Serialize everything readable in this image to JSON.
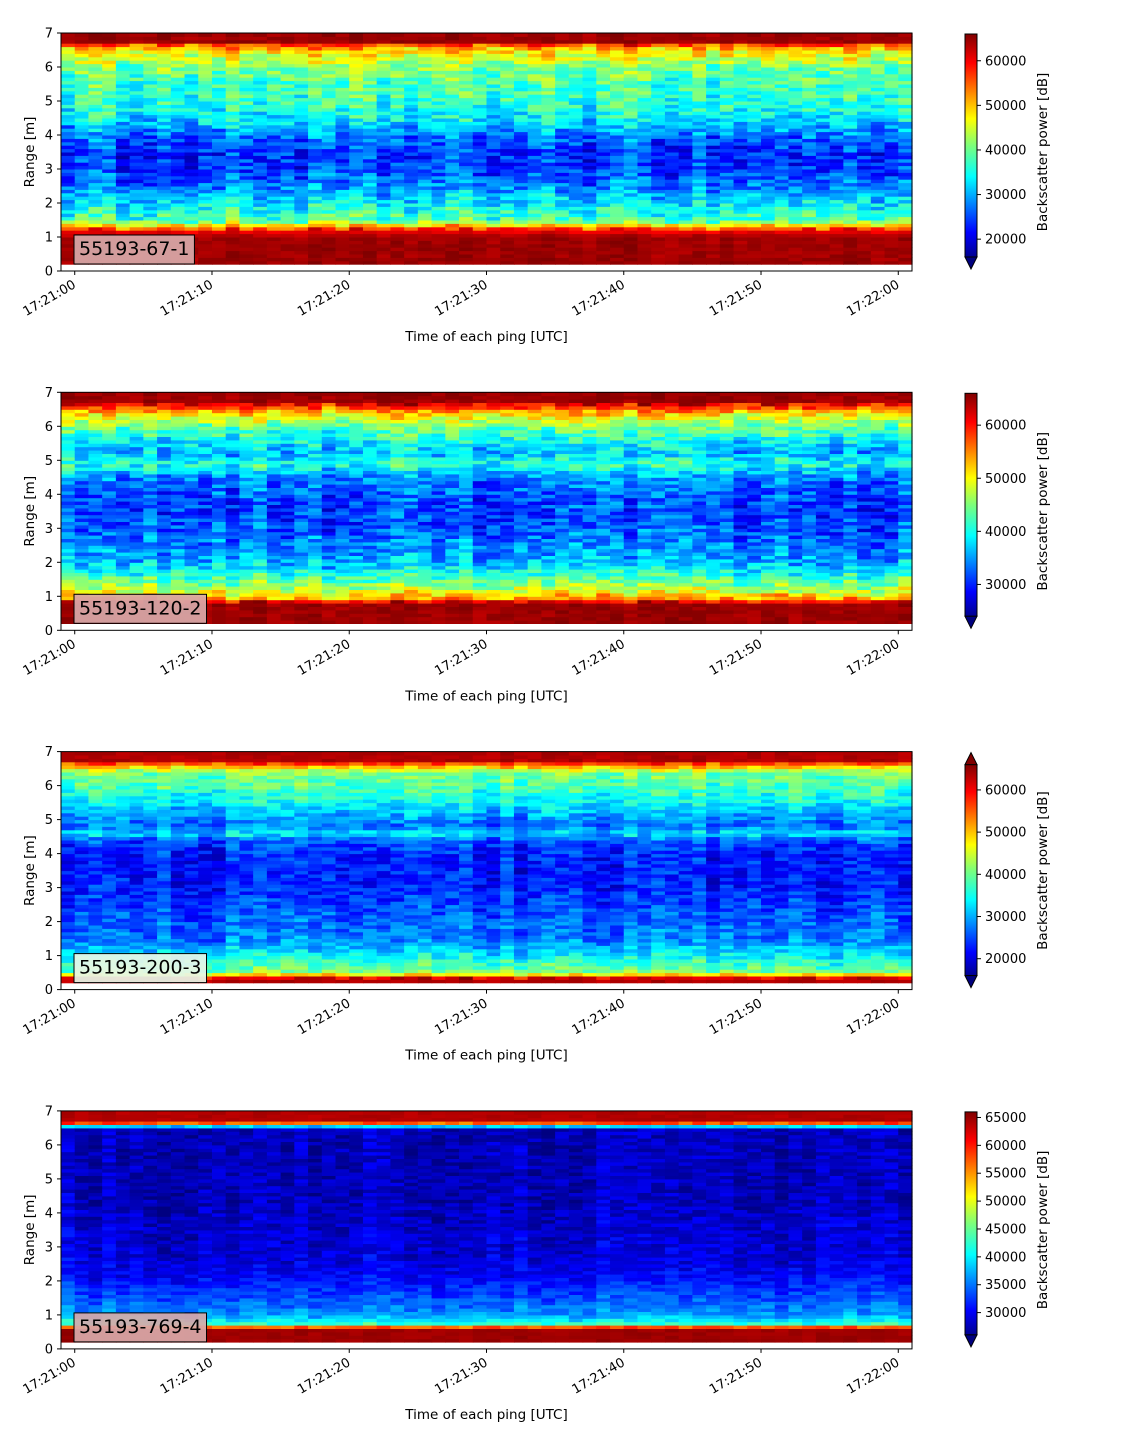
{
  "chart_data": [
    {
      "type": "heatmap",
      "label_box": "55193-67-1",
      "label_box_color": "#d8a9a9",
      "xlabel": "Time of each ping [UTC]",
      "ylabel": "Range [m]",
      "colorbar_label": "Backscatter power [dB]",
      "xticks": [
        "17:21:00",
        "17:21:10",
        "17:21:20",
        "17:21:30",
        "17:21:40",
        "17:21:50",
        "17:22:00"
      ],
      "xlim_seconds_after_17_21_00": [
        -1,
        61
      ],
      "ylim": [
        0,
        7
      ],
      "yticks": [
        0,
        1,
        2,
        3,
        4,
        5,
        6,
        7
      ],
      "colorbar_ticks": [
        20000,
        30000,
        40000,
        50000,
        60000
      ],
      "colorbar_range": [
        16000,
        66000
      ],
      "colorbar_extend": "min",
      "colormap": "jet",
      "profile": {
        "range_m": [
          0.2,
          1.0,
          1.2,
          1.5,
          2.0,
          2.5,
          3.0,
          3.5,
          4.0,
          4.5,
          5.0,
          5.5,
          6.0,
          6.4,
          6.6,
          6.75,
          7.0
        ],
        "level": [
          0.97,
          0.97,
          0.88,
          0.45,
          0.36,
          0.25,
          0.18,
          0.17,
          0.24,
          0.36,
          0.42,
          0.45,
          0.5,
          0.62,
          0.72,
          0.97,
          0.97
        ]
      },
      "noise": 0.09
    },
    {
      "type": "heatmap",
      "label_box": "55193-120-2",
      "label_box_color": "#d8a9a9",
      "xlabel": "Time of each ping [UTC]",
      "ylabel": "Range [m]",
      "colorbar_label": "Backscatter power [dB]",
      "xticks": [
        "17:21:00",
        "17:21:10",
        "17:21:20",
        "17:21:30",
        "17:21:40",
        "17:21:50",
        "17:22:00"
      ],
      "xlim_seconds_after_17_21_00": [
        -1,
        61
      ],
      "ylim": [
        0,
        7
      ],
      "yticks": [
        0,
        1,
        2,
        3,
        4,
        5,
        6,
        7
      ],
      "colorbar_ticks": [
        30000,
        40000,
        50000,
        60000
      ],
      "colorbar_range": [
        24000,
        66000
      ],
      "colorbar_extend": "min",
      "colormap": "jet",
      "profile": {
        "range_m": [
          0.2,
          0.8,
          0.95,
          1.2,
          1.6,
          2.0,
          2.5,
          3.0,
          3.5,
          4.0,
          4.5,
          4.9,
          5.2,
          5.6,
          6.0,
          6.4,
          6.75,
          7.0
        ],
        "level": [
          0.97,
          0.97,
          0.72,
          0.56,
          0.42,
          0.3,
          0.25,
          0.2,
          0.18,
          0.2,
          0.25,
          0.42,
          0.3,
          0.38,
          0.48,
          0.66,
          0.97,
          0.97
        ]
      },
      "noise": 0.09
    },
    {
      "type": "heatmap",
      "label_box": "55193-200-3",
      "label_box_color": "#e8f6e8",
      "xlabel": "Time of each ping [UTC]",
      "ylabel": "Range [m]",
      "colorbar_label": "Backscatter power [dB]",
      "xticks": [
        "17:21:00",
        "17:21:10",
        "17:21:20",
        "17:21:30",
        "17:21:40",
        "17:21:50",
        "17:22:00"
      ],
      "xlim_seconds_after_17_21_00": [
        -1,
        61
      ],
      "ylim": [
        0,
        7
      ],
      "yticks": [
        0,
        1,
        2,
        3,
        4,
        5,
        6,
        7
      ],
      "colorbar_ticks": [
        20000,
        30000,
        40000,
        50000,
        60000
      ],
      "colorbar_range": [
        16000,
        66000
      ],
      "colorbar_extend": "both",
      "colormap": "jet",
      "profile": {
        "range_m": [
          0.2,
          0.35,
          0.5,
          0.8,
          1.1,
          1.5,
          2.0,
          2.5,
          3.0,
          3.5,
          4.0,
          4.4,
          4.6,
          4.8,
          5.2,
          5.6,
          6.0,
          6.4,
          6.6,
          6.75,
          7.0
        ],
        "level": [
          0.97,
          0.9,
          0.5,
          0.42,
          0.34,
          0.24,
          0.22,
          0.18,
          0.15,
          0.14,
          0.15,
          0.2,
          0.36,
          0.22,
          0.3,
          0.38,
          0.45,
          0.5,
          0.72,
          0.95,
          0.95
        ]
      },
      "noise": 0.07
    },
    {
      "type": "heatmap",
      "label_box": "55193-769-4",
      "label_box_color": "#d8a9a9",
      "xlabel": "Time of each ping [UTC]",
      "ylabel": "Range [m]",
      "colorbar_label": "Backscatter power [dB]",
      "xticks": [
        "17:21:00",
        "17:21:10",
        "17:21:20",
        "17:21:30",
        "17:21:40",
        "17:21:50",
        "17:22:00"
      ],
      "xlim_seconds_after_17_21_00": [
        -1,
        61
      ],
      "ylim": [
        0,
        7
      ],
      "yticks": [
        0,
        1,
        2,
        3,
        4,
        5,
        6,
        7
      ],
      "colorbar_ticks": [
        30000,
        35000,
        40000,
        45000,
        50000,
        55000,
        60000,
        65000
      ],
      "colorbar_range": [
        26000,
        66000
      ],
      "colorbar_extend": "min",
      "colormap": "jet",
      "profile": {
        "range_m": [
          0.2,
          0.6,
          0.75,
          1.0,
          1.4,
          1.8,
          2.2,
          2.8,
          3.5,
          4.5,
          5.5,
          6.5,
          6.62,
          6.7,
          7.0
        ],
        "level": [
          0.97,
          0.97,
          0.42,
          0.28,
          0.22,
          0.17,
          0.12,
          0.09,
          0.08,
          0.06,
          0.06,
          0.06,
          0.7,
          0.95,
          0.95
        ]
      },
      "noise": 0.05
    }
  ]
}
